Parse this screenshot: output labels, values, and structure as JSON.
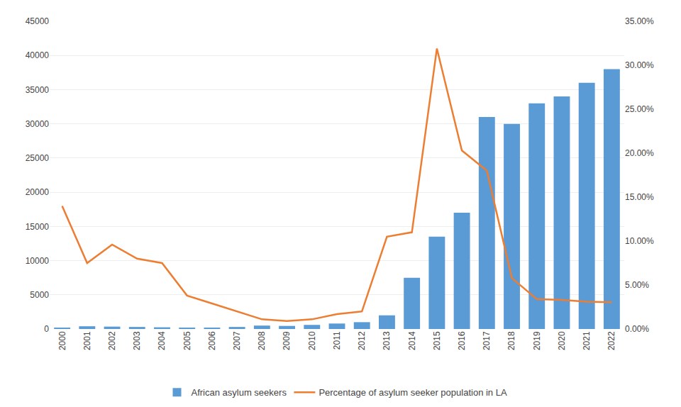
{
  "chart_data": {
    "type": "bar",
    "categories": [
      "2000",
      "2001",
      "2002",
      "2003",
      "2004",
      "2005",
      "2006",
      "2007",
      "2008",
      "2009",
      "2010",
      "2011",
      "2012",
      "2013",
      "2014",
      "2015",
      "2016",
      "2017",
      "2018",
      "2019",
      "2020",
      "2021",
      "2022"
    ],
    "series": [
      {
        "name": "African asylum seekers",
        "type": "bar",
        "color": "#5B9BD5",
        "values": [
          200,
          400,
          350,
          300,
          250,
          200,
          200,
          300,
          500,
          450,
          600,
          800,
          1000,
          2000,
          7500,
          13500,
          17000,
          31000,
          30000,
          33000,
          34000,
          36000,
          38000
        ]
      },
      {
        "name": "Percentage of asylum seeker population in LA",
        "type": "line",
        "color": "#ED7D31",
        "axis": "y2",
        "values": [
          0.14,
          0.075,
          0.096,
          0.08,
          0.075,
          0.038,
          0.029,
          0.02,
          0.011,
          0.009,
          0.011,
          0.017,
          0.02,
          0.105,
          0.11,
          0.319,
          0.203,
          0.18,
          0.058,
          0.034,
          0.033,
          0.031,
          0.0305
        ]
      }
    ],
    "ylim": [
      0,
      45000
    ],
    "yticks": [
      0,
      5000,
      10000,
      15000,
      20000,
      25000,
      30000,
      35000,
      40000,
      45000
    ],
    "y2lim": [
      0,
      0.35
    ],
    "y2ticks": [
      {
        "value": 0.0,
        "label": "0.00%"
      },
      {
        "value": 0.05,
        "label": "5.00%"
      },
      {
        "value": 0.1,
        "label": "10.00%"
      },
      {
        "value": 0.15,
        "label": "15.00%"
      },
      {
        "value": 0.2,
        "label": "20.00%"
      },
      {
        "value": 0.25,
        "label": "25.00%"
      },
      {
        "value": 0.3,
        "label": "30.00%"
      },
      {
        "value": 0.35,
        "label": "35.00%"
      }
    ],
    "grid": true,
    "legend": "bottom"
  }
}
